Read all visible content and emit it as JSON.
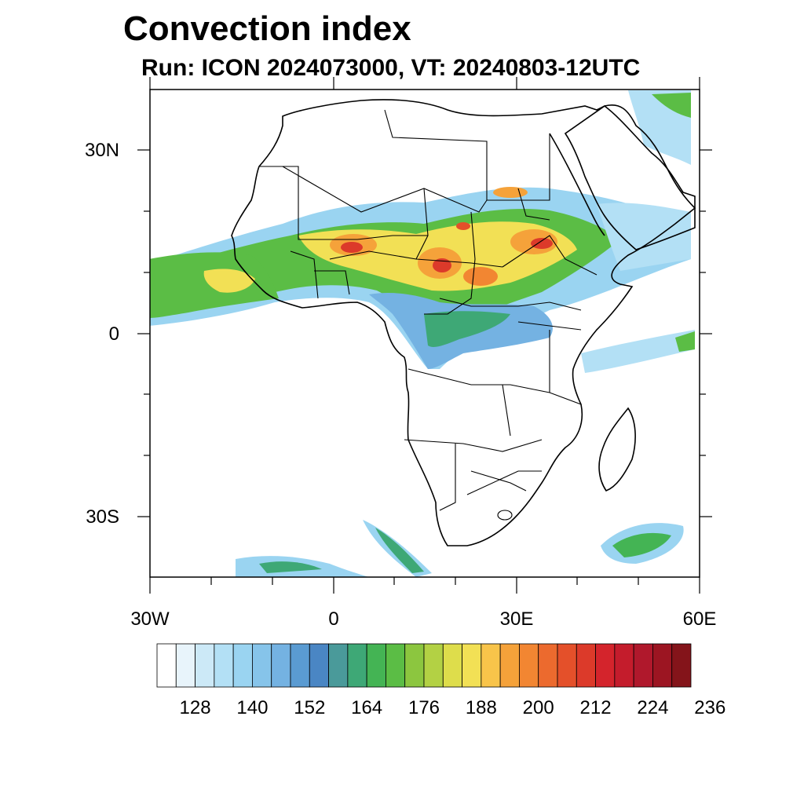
{
  "title": "Convection index",
  "subtitle": "Run: ICON 2024073000,  VT: 20240803-12UTC",
  "axes": {
    "lat_labels": [
      "30N",
      "0",
      "30S"
    ],
    "lon_labels": [
      "30W",
      "0",
      "30E",
      "60E"
    ],
    "lon_range": [
      -30,
      60
    ],
    "lat_range": [
      -40,
      40
    ]
  },
  "colorbar": {
    "labels": [
      "128",
      "140",
      "152",
      "164",
      "176",
      "188",
      "200",
      "212",
      "224",
      "236"
    ],
    "colors": [
      "#ffffff",
      "#e8f4fb",
      "#cce9f7",
      "#b3e0f5",
      "#9ad4f1",
      "#86c4ea",
      "#74b2e2",
      "#5a9bd2",
      "#4a86c4",
      "#4a9a9a",
      "#3ea876",
      "#44b454",
      "#5bbd45",
      "#8cc63f",
      "#b3d144",
      "#dedd4b",
      "#f2e055",
      "#f8c44a",
      "#f5a23a",
      "#f28632",
      "#ec6a2e",
      "#e4502a",
      "#dc3a2a",
      "#d4242c",
      "#c41c2c",
      "#b0182c",
      "#9c1522",
      "#84141a"
    ]
  }
}
